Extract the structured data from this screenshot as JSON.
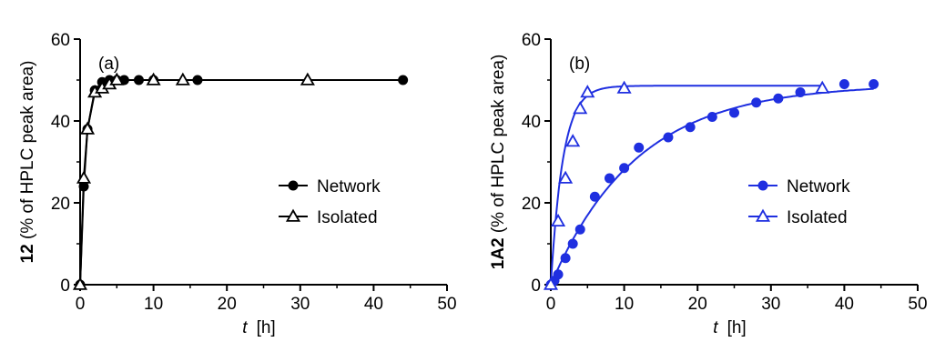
{
  "chart_data": [
    {
      "type": "scatter",
      "panel_label": "(a)",
      "color": "#000000",
      "xlabel": {
        "italic": "t",
        "rest": "[h]"
      },
      "ylabel": {
        "bold": "12",
        "rest": "(% of HPLC peak area)"
      },
      "xlim": [
        0,
        50
      ],
      "ylim": [
        0,
        60
      ],
      "xticks": [
        0,
        10,
        20,
        30,
        40,
        50
      ],
      "yticks": [
        0,
        20,
        40,
        60
      ],
      "legend_position": "right",
      "series": [
        {
          "name": "Network",
          "marker": "filled-circle",
          "x": [
            0,
            0.5,
            1,
            2,
            3,
            4,
            5,
            6,
            8,
            10,
            16,
            44
          ],
          "y": [
            0,
            24,
            38,
            47.5,
            49.5,
            50,
            50,
            50,
            50,
            50,
            50,
            50
          ],
          "fit": "connect"
        },
        {
          "name": "Isolated",
          "marker": "open-triangle",
          "x": [
            0,
            0.5,
            1,
            2,
            3,
            4,
            5,
            10,
            14,
            31
          ],
          "y": [
            0,
            26,
            38,
            47,
            48,
            49,
            50,
            50,
            50,
            50
          ],
          "fit": "connect"
        }
      ]
    },
    {
      "type": "scatter",
      "panel_label": "(b)",
      "color": "#1f2fe0",
      "xlabel": {
        "italic": "t",
        "rest": "[h]"
      },
      "ylabel": {
        "bold": "1A2",
        "rest": "(% of HPLC peak area)"
      },
      "xlim": [
        0,
        50
      ],
      "ylim": [
        0,
        60
      ],
      "xticks": [
        0,
        10,
        20,
        30,
        40,
        50
      ],
      "yticks": [
        0,
        20,
        40,
        60
      ],
      "legend_position": "right",
      "series": [
        {
          "name": "Network",
          "marker": "filled-circle",
          "x": [
            0,
            0.5,
            1,
            2,
            3,
            4,
            6,
            8,
            10,
            12,
            16,
            19,
            22,
            25,
            28,
            31,
            34,
            40,
            44
          ],
          "y": [
            0,
            1,
            2.5,
            6.5,
            10,
            13.5,
            21.5,
            26,
            28.5,
            33.5,
            36,
            38.5,
            41,
            42,
            44.5,
            45.5,
            47,
            49,
            49
          ],
          "fit": {
            "model": "exp",
            "plateau": 49,
            "k": 0.085,
            "x_end": 44
          }
        },
        {
          "name": "Isolated",
          "marker": "open-triangle",
          "x": [
            0,
            1,
            2,
            3,
            4,
            5,
            10,
            37
          ],
          "y": [
            0,
            15.5,
            26,
            35,
            43,
            47,
            48,
            48
          ],
          "fit": {
            "model": "exp",
            "plateau": 48.6,
            "k": 0.6,
            "x_end": 37
          }
        }
      ]
    }
  ]
}
